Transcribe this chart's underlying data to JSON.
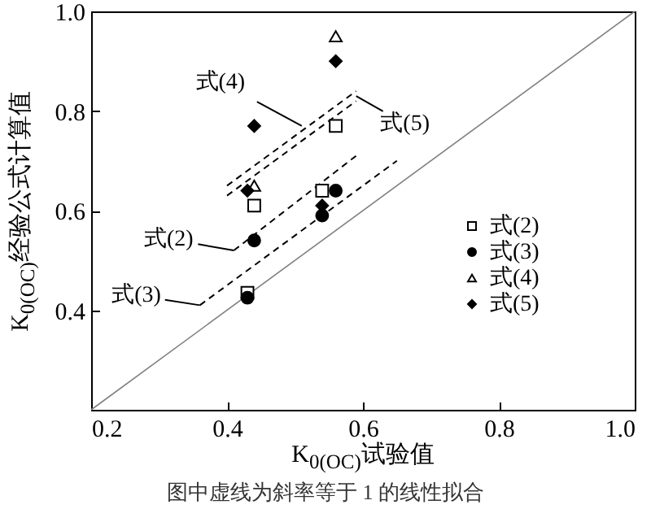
{
  "chart_data": {
    "type": "scatter",
    "xlabel": "K$_{0(OC)}$试验值",
    "ylabel": "K$_{0(OC)}$经验公式计算值",
    "xlim": [
      0.2,
      1.0
    ],
    "ylim": [
      0.2,
      1.0
    ],
    "xticks": [
      0.2,
      0.4,
      0.6,
      0.8,
      {
        "value": 1,
        "label": "1.0"
      }
    ],
    "yticks": [
      {
        "value": 0.2,
        "label": null
      },
      0.4,
      0.6,
      0.8,
      {
        "value": 1,
        "label": "1.0"
      }
    ],
    "grid": false,
    "legend": "bottom right",
    "series": [
      {
        "name": "式(2)",
        "marker": "square",
        "color": "#000000",
        "x": [
          0.44,
          0.56,
          0.54,
          0.43
        ],
        "values": [
          0.61,
          0.77,
          0.64,
          0.435
        ]
      },
      {
        "name": "式(3)",
        "marker": "circle",
        "color": "#000000",
        "x": [
          0.44,
          0.56,
          0.54,
          0.43
        ],
        "values": [
          0.54,
          0.64,
          0.59,
          0.425
        ]
      },
      {
        "name": "式(4)",
        "marker": "triangle",
        "color": "#000000",
        "x": [
          0.56,
          0.44
        ],
        "values": [
          0.95,
          0.65
        ]
      },
      {
        "name": "式(5)",
        "marker": "diamond",
        "color": "#000000",
        "x": [
          0.56,
          0.44,
          0.43,
          0.54
        ],
        "values": [
          0.9,
          0.77,
          0.64,
          0.61
        ]
      },
      {
        "type": "line",
        "line_style": "dashed",
        "color": "#000000",
        "x": [
          0.41,
          0.59
        ],
        "values": [
          0.52,
          0.71
        ]
      },
      {
        "type": "line",
        "line_style": "dashed",
        "color": "#000000",
        "x": [
          0.36,
          0.65
        ],
        "values": [
          0.41,
          0.7
        ]
      },
      {
        "type": "line",
        "line_style": "dashed",
        "color": "#000000",
        "x": [
          0.4,
          0.59
        ],
        "values": [
          0.65,
          0.84
        ]
      },
      {
        "type": "line",
        "line_style": "dashed",
        "color": "#000000",
        "x": [
          0.4,
          0.59
        ],
        "values": [
          0.63,
          0.82
        ]
      },
      {
        "type": "line",
        "line_style": "solid",
        "color": "#808080",
        "x": [
          0.2,
          1.0
        ],
        "values": [
          0.2,
          1.0
        ]
      }
    ],
    "annotations": [
      {
        "text": "式(2)",
        "x": 0.41,
        "y": 0.52
      },
      {
        "text": "式(3)",
        "x": 0.36,
        "y": 0.41
      },
      {
        "text": "式(4)",
        "x": 0.51,
        "y": 0.77
      },
      {
        "text": "式(5)",
        "x": 0.59,
        "y": 0.83
      },
      "图中虚线为斜率等于 1 的线性拟合"
    ]
  }
}
